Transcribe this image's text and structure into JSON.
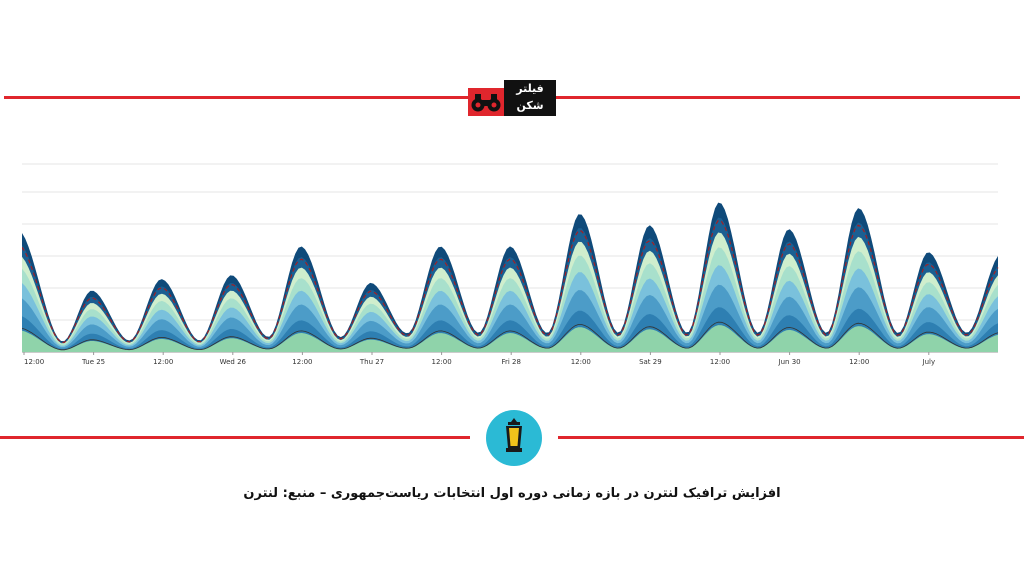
{
  "logo": {
    "text_top": "فیلتر",
    "text_bottom": "شکن"
  },
  "caption": "افزایش ترافیک لنترن در بازه زمانی دوره اول انتخابات ریاست‌جمهوری – منبع: لنترن",
  "colors": {
    "accent": "#e0262d",
    "layers": [
      "#8fd3aa",
      "#cfeecd",
      "#2e7fb2",
      "#4c9cc8",
      "#7ac1dc",
      "#a8e0cc",
      "#1b5f92",
      "#0f4a7a"
    ],
    "dashed_line": "#a11f24",
    "dotted_line": "#7bbf8e",
    "lantern_bg": "#2bbad5"
  },
  "icons": {
    "logo": "binoculars-icon",
    "lantern": "lantern-icon"
  },
  "chart_data": {
    "type": "area",
    "stacked": true,
    "x_tick_labels": [
      "12:00",
      "Tue 25",
      "12:00",
      "Wed 26",
      "12:00",
      "Thu 27",
      "12:00",
      "Fri 28",
      "12:00",
      "Sat 29",
      "12:00",
      "Jun 30",
      "12:00",
      "July"
    ],
    "title": "",
    "xlabel": "",
    "ylabel": "",
    "grid": true,
    "peaks_relative_height": [
      0.62,
      0.32,
      0.38,
      0.4,
      0.55,
      0.36,
      0.55,
      0.55,
      0.72,
      0.66,
      0.78,
      0.64,
      0.75,
      0.52,
      0.5
    ],
    "troughs_relative_height": [
      0.06,
      0.06,
      0.06,
      0.08,
      0.08,
      0.1,
      0.1,
      0.1,
      0.1,
      0.1,
      0.1,
      0.1,
      0.1
    ]
  }
}
